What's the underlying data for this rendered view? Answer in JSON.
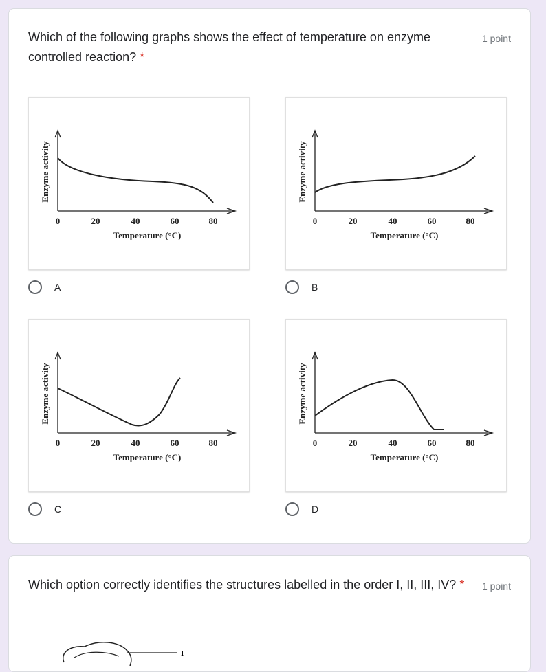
{
  "questions": [
    {
      "title": "Which of the following graphs shows the effect of temperature on enzyme controlled reaction?",
      "required": "*",
      "points": "1 point",
      "options": [
        {
          "label": "A",
          "graph": {
            "y_label": "Enzyme activity",
            "x_label": "Temperature (°C)",
            "x_ticks": [
              "0",
              "20",
              "40",
              "60",
              "80"
            ]
          }
        },
        {
          "label": "B",
          "graph": {
            "y_label": "Enzyme activity",
            "x_label": "Temperature (°C)",
            "x_ticks": [
              "0",
              "20",
              "40",
              "60",
              "80"
            ]
          }
        },
        {
          "label": "C",
          "graph": {
            "y_label": "Enzyme activity",
            "x_label": "Temperature (°C)",
            "x_ticks": [
              "0",
              "20",
              "40",
              "60",
              "80"
            ]
          }
        },
        {
          "label": "D",
          "graph": {
            "y_label": "Enzyme activity",
            "x_label": "Temperature (°C)",
            "x_ticks": [
              "0",
              "20",
              "40",
              "60",
              "80"
            ]
          }
        }
      ]
    },
    {
      "title": "Which option correctly identifies the structures labelled in the order I, II, III, IV?",
      "required": "*",
      "points": "1 point",
      "figure_labels": [
        "I"
      ]
    }
  ]
}
